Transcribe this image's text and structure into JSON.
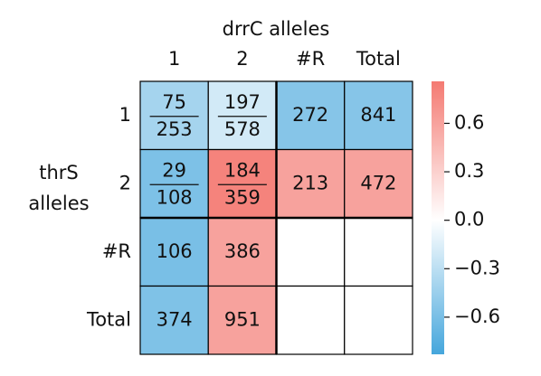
{
  "chart_data": {
    "type": "heatmap",
    "x_label": "drrC alleles",
    "y_label": [
      "thrS",
      "alleles"
    ],
    "x_categories": [
      "1",
      "2",
      "#R",
      "Total"
    ],
    "y_categories": [
      "1",
      "2",
      "#R",
      "Total"
    ],
    "cells": [
      [
        {
          "numerator": 75,
          "denominator": 253,
          "value": -0.4
        },
        {
          "numerator": 197,
          "denominator": 578,
          "value": -0.2
        },
        {
          "count": 272,
          "value": -0.54
        },
        {
          "count": 841,
          "value": -0.54
        }
      ],
      [
        {
          "numerator": 29,
          "denominator": 108,
          "value": -0.58
        },
        {
          "numerator": 184,
          "denominator": 359,
          "value": 0.8
        },
        {
          "count": 213,
          "value": 0.6
        },
        {
          "count": 472,
          "value": 0.6
        }
      ],
      [
        {
          "count": 106,
          "value": -0.6
        },
        {
          "count": 386,
          "value": 0.6
        },
        null,
        null
      ],
      [
        {
          "count": 374,
          "value": -0.57
        },
        {
          "count": 951,
          "value": 0.6
        },
        null,
        null
      ]
    ],
    "colorbar": {
      "lim": [
        -0.83,
        0.86
      ],
      "ticks": [
        0.6,
        0.3,
        {
          "value": 0,
          "label": "0.0"
        },
        {
          "value": -0.3,
          "label": "−0.3"
        },
        {
          "value": -0.6,
          "label": "−0.6"
        }
      ],
      "colors": [
        "#45a6dc",
        "#ffffff",
        "#f47a72"
      ]
    }
  }
}
